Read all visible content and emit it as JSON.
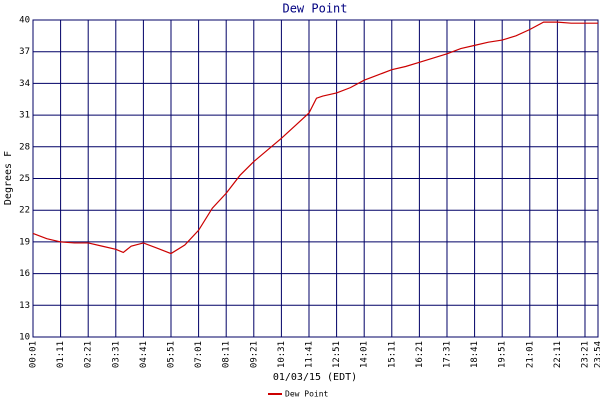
{
  "chart_data": {
    "type": "line",
    "title": "Dew Point",
    "xlabel": "01/03/15 (EDT)",
    "ylabel": "Degrees F",
    "x": [
      "00:01",
      "00:36",
      "01:11",
      "01:46",
      "02:21",
      "02:56",
      "03:31",
      "03:50",
      "04:10",
      "04:41",
      "05:16",
      "05:51",
      "06:26",
      "07:01",
      "07:36",
      "08:11",
      "08:46",
      "09:21",
      "09:56",
      "10:31",
      "11:06",
      "11:41",
      "12:00",
      "12:16",
      "12:51",
      "13:26",
      "14:01",
      "14:36",
      "15:11",
      "15:46",
      "16:21",
      "16:56",
      "17:31",
      "18:06",
      "18:41",
      "19:16",
      "19:51",
      "20:26",
      "21:01",
      "21:36",
      "22:11",
      "22:46",
      "23:21",
      "23:54"
    ],
    "series": [
      {
        "name": "Dew Point",
        "color": "#cc0000",
        "values": [
          19.8,
          19.3,
          19.0,
          18.9,
          18.9,
          18.6,
          18.3,
          18.0,
          18.6,
          18.9,
          18.4,
          17.9,
          18.7,
          20.1,
          22.2,
          23.6,
          25.3,
          26.6,
          27.7,
          28.8,
          30.0,
          31.2,
          32.6,
          32.8,
          33.1,
          33.6,
          34.3,
          34.8,
          35.3,
          35.6,
          36.0,
          36.4,
          36.8,
          37.3,
          37.6,
          37.9,
          38.1,
          38.5,
          39.1,
          39.8,
          39.8,
          39.7,
          39.7,
          39.7
        ]
      }
    ],
    "xlim": [
      "00:01",
      "23:54"
    ],
    "xticks": [
      "00:01",
      "01:11",
      "02:21",
      "03:31",
      "04:41",
      "05:51",
      "07:01",
      "08:11",
      "09:21",
      "10:31",
      "11:41",
      "12:51",
      "14:01",
      "15:11",
      "16:21",
      "17:31",
      "18:41",
      "19:51",
      "21:01",
      "22:11",
      "23:21",
      "23:54"
    ],
    "ylim": [
      10,
      40
    ],
    "yticks": [
      10,
      13,
      16,
      19,
      22,
      25,
      28,
      31,
      34,
      37,
      40
    ],
    "grid": true,
    "grid_color": "#000066"
  }
}
